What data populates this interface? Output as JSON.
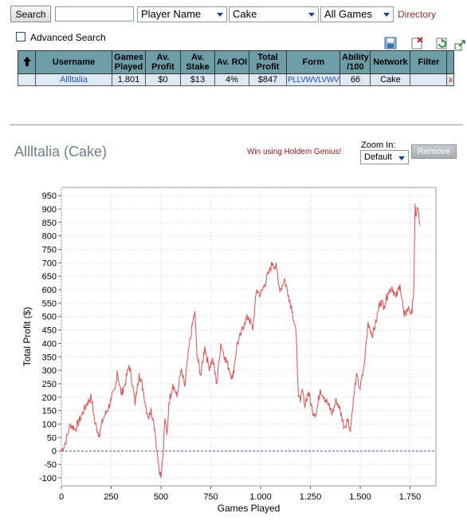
{
  "toolbar": {
    "search_label": "Search",
    "search_value": "",
    "field_select": "Player Name",
    "network_select": "Cake",
    "games_select": "All Games",
    "directory_label": "Directory",
    "advanced_label": "Advanced Search"
  },
  "table": {
    "headers": [
      "Username",
      "Games Played",
      "Av. Profit",
      "Av. Stake",
      "Av. ROI",
      "Total Profit",
      "Form",
      "Ability /100",
      "Network",
      "Filter"
    ],
    "row": {
      "username": "Allltalia",
      "games": "1.801",
      "av_profit": "$0",
      "av_stake": "$13",
      "av_roi": "4%",
      "total_profit": "$847",
      "form": "PLLVWVLVWV",
      "ability": "66",
      "network": "Cake",
      "filter": "",
      "remove": "x"
    }
  },
  "player": {
    "name": "Allltalia",
    "network": "(Cake)",
    "promo": "Win using Holdem Genius!",
    "zoom_label": "Zoom In:",
    "zoom_value": "Default",
    "remove_label": "Remove"
  },
  "chart_data": {
    "type": "line",
    "xlabel": "Games Played",
    "ylabel": "Total Profit ($)",
    "xlim": [
      0,
      1880
    ],
    "ylim": [
      -130,
      980
    ],
    "x_ticks": [
      "0",
      "250",
      "500",
      "750",
      "1.000",
      "1.250",
      "1.500",
      "1.750"
    ],
    "y_ticks": [
      "-100",
      "-50",
      "0",
      "50",
      "100",
      "150",
      "200",
      "250",
      "300",
      "350",
      "400",
      "450",
      "500",
      "550",
      "600",
      "650",
      "700",
      "750",
      "800",
      "850",
      "900",
      "950"
    ],
    "grid": true,
    "line_color": "#e05050",
    "zero_line_color": "#4a5fd0",
    "x": [
      0,
      20,
      45,
      70,
      100,
      130,
      150,
      170,
      190,
      210,
      230,
      250,
      270,
      280,
      300,
      320,
      340,
      360,
      370,
      390,
      410,
      420,
      440,
      450,
      460,
      470,
      480,
      490,
      500,
      510,
      520,
      530,
      540,
      560,
      580,
      600,
      620,
      640,
      660,
      670,
      680,
      700,
      720,
      740,
      760,
      780,
      800,
      820,
      840,
      860,
      880,
      900,
      920,
      940,
      960,
      980,
      1000,
      1020,
      1040,
      1060,
      1080,
      1090,
      1100,
      1120,
      1140,
      1160,
      1180,
      1190,
      1200,
      1210,
      1220,
      1240,
      1260,
      1280,
      1300,
      1320,
      1340,
      1360,
      1380,
      1400,
      1420,
      1440,
      1450,
      1460,
      1480,
      1500,
      1520,
      1540,
      1560,
      1580,
      1600,
      1620,
      1640,
      1660,
      1680,
      1700,
      1720,
      1740,
      1760,
      1770,
      1775,
      1780,
      1790,
      1800
    ],
    "values": [
      0,
      30,
      100,
      80,
      130,
      180,
      200,
      100,
      60,
      120,
      150,
      190,
      230,
      300,
      210,
      250,
      320,
      240,
      170,
      290,
      230,
      180,
      120,
      160,
      120,
      80,
      0,
      -60,
      -100,
      -20,
      120,
      60,
      180,
      250,
      200,
      300,
      240,
      380,
      480,
      520,
      360,
      280,
      390,
      310,
      340,
      250,
      400,
      350,
      310,
      270,
      390,
      430,
      480,
      500,
      450,
      600,
      580,
      620,
      660,
      700,
      680,
      620,
      600,
      640,
      580,
      520,
      420,
      200,
      180,
      230,
      170,
      220,
      150,
      140,
      230,
      200,
      170,
      140,
      190,
      150,
      90,
      120,
      70,
      150,
      280,
      230,
      320,
      480,
      430,
      480,
      560,
      540,
      590,
      610,
      570,
      620,
      500,
      530,
      510,
      620,
      920,
      870,
      900,
      840
    ]
  }
}
